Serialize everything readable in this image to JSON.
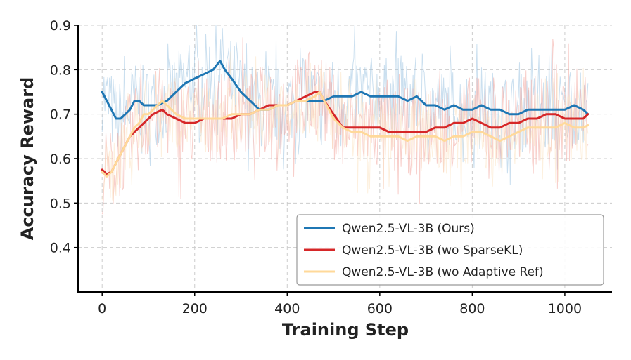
{
  "chart_data": {
    "type": "line",
    "title": "",
    "xlabel": "Training Step",
    "ylabel": "Accuracy Reward",
    "xlim": [
      -52,
      1102
    ],
    "ylim": [
      0.3,
      0.9
    ],
    "xticks": [
      0,
      200,
      400,
      600,
      800,
      1000
    ],
    "yticks": [
      0.4,
      0.5,
      0.6,
      0.7,
      0.8,
      0.9
    ],
    "grid": true,
    "legend_position": "lower-right",
    "series": [
      {
        "name": "Qwen2.5-VL-3B (Ours)",
        "color": "#1f77b4",
        "raw_color": "#9ec4e2",
        "x": [
          0,
          10,
          20,
          30,
          40,
          50,
          60,
          70,
          80,
          90,
          100,
          120,
          140,
          160,
          180,
          200,
          220,
          240,
          255,
          265,
          280,
          300,
          320,
          340,
          360,
          380,
          400,
          420,
          440,
          460,
          480,
          500,
          520,
          540,
          560,
          580,
          600,
          620,
          640,
          660,
          680,
          700,
          720,
          740,
          760,
          780,
          800,
          820,
          840,
          860,
          880,
          900,
          920,
          940,
          960,
          980,
          1000,
          1020,
          1040,
          1050
        ],
        "values": [
          0.75,
          0.73,
          0.71,
          0.69,
          0.69,
          0.7,
          0.71,
          0.73,
          0.73,
          0.72,
          0.72,
          0.72,
          0.73,
          0.75,
          0.77,
          0.78,
          0.79,
          0.8,
          0.82,
          0.8,
          0.78,
          0.75,
          0.73,
          0.71,
          0.71,
          0.72,
          0.72,
          0.73,
          0.73,
          0.73,
          0.73,
          0.74,
          0.74,
          0.74,
          0.75,
          0.74,
          0.74,
          0.74,
          0.74,
          0.73,
          0.74,
          0.72,
          0.72,
          0.71,
          0.72,
          0.71,
          0.71,
          0.72,
          0.71,
          0.71,
          0.7,
          0.7,
          0.71,
          0.71,
          0.71,
          0.71,
          0.71,
          0.72,
          0.71,
          0.7
        ],
        "raw_spread": 0.09
      },
      {
        "name": "Qwen2.5-VL-3B (wo SparseKL)",
        "color": "#d62728",
        "raw_color": "#f2a7a0",
        "x": [
          0,
          10,
          20,
          30,
          40,
          50,
          60,
          70,
          80,
          90,
          100,
          110,
          120,
          130,
          140,
          160,
          180,
          200,
          220,
          240,
          260,
          280,
          300,
          320,
          340,
          360,
          380,
          400,
          420,
          440,
          460,
          470,
          480,
          500,
          520,
          540,
          560,
          580,
          600,
          620,
          640,
          660,
          680,
          700,
          720,
          740,
          760,
          780,
          800,
          820,
          840,
          860,
          880,
          900,
          920,
          940,
          960,
          980,
          1000,
          1020,
          1040,
          1050
        ],
        "values": [
          0.575,
          0.565,
          0.57,
          0.59,
          0.61,
          0.63,
          0.65,
          0.66,
          0.67,
          0.68,
          0.69,
          0.7,
          0.705,
          0.71,
          0.7,
          0.69,
          0.68,
          0.68,
          0.69,
          0.69,
          0.69,
          0.69,
          0.7,
          0.7,
          0.71,
          0.72,
          0.72,
          0.72,
          0.73,
          0.74,
          0.75,
          0.75,
          0.73,
          0.7,
          0.67,
          0.67,
          0.67,
          0.67,
          0.67,
          0.66,
          0.66,
          0.66,
          0.66,
          0.66,
          0.67,
          0.67,
          0.68,
          0.68,
          0.69,
          0.68,
          0.67,
          0.67,
          0.68,
          0.68,
          0.69,
          0.69,
          0.7,
          0.7,
          0.69,
          0.69,
          0.69,
          0.7
        ],
        "raw_spread": 0.1
      },
      {
        "name": "Qwen2.5-VL-3B (wo Adaptive Ref)",
        "color": "#ffd99a",
        "raw_color": "#fbe3c2",
        "x": [
          0,
          10,
          20,
          30,
          40,
          50,
          60,
          70,
          80,
          90,
          100,
          110,
          120,
          130,
          140,
          160,
          180,
          200,
          220,
          240,
          260,
          280,
          300,
          320,
          340,
          360,
          380,
          400,
          420,
          440,
          460,
          470,
          480,
          500,
          520,
          540,
          560,
          580,
          600,
          620,
          640,
          660,
          680,
          700,
          720,
          740,
          760,
          780,
          800,
          820,
          840,
          860,
          880,
          900,
          920,
          940,
          960,
          980,
          1000,
          1020,
          1040,
          1050
        ],
        "values": [
          0.57,
          0.56,
          0.57,
          0.59,
          0.61,
          0.63,
          0.65,
          0.67,
          0.68,
          0.7,
          0.7,
          0.71,
          0.72,
          0.73,
          0.72,
          0.7,
          0.69,
          0.69,
          0.69,
          0.69,
          0.69,
          0.7,
          0.7,
          0.7,
          0.71,
          0.71,
          0.72,
          0.72,
          0.73,
          0.73,
          0.74,
          0.75,
          0.73,
          0.69,
          0.67,
          0.66,
          0.66,
          0.65,
          0.65,
          0.65,
          0.65,
          0.64,
          0.65,
          0.65,
          0.65,
          0.64,
          0.65,
          0.65,
          0.66,
          0.66,
          0.65,
          0.64,
          0.65,
          0.66,
          0.67,
          0.67,
          0.67,
          0.67,
          0.68,
          0.67,
          0.67,
          0.675
        ],
        "raw_spread": 0.08
      }
    ]
  }
}
